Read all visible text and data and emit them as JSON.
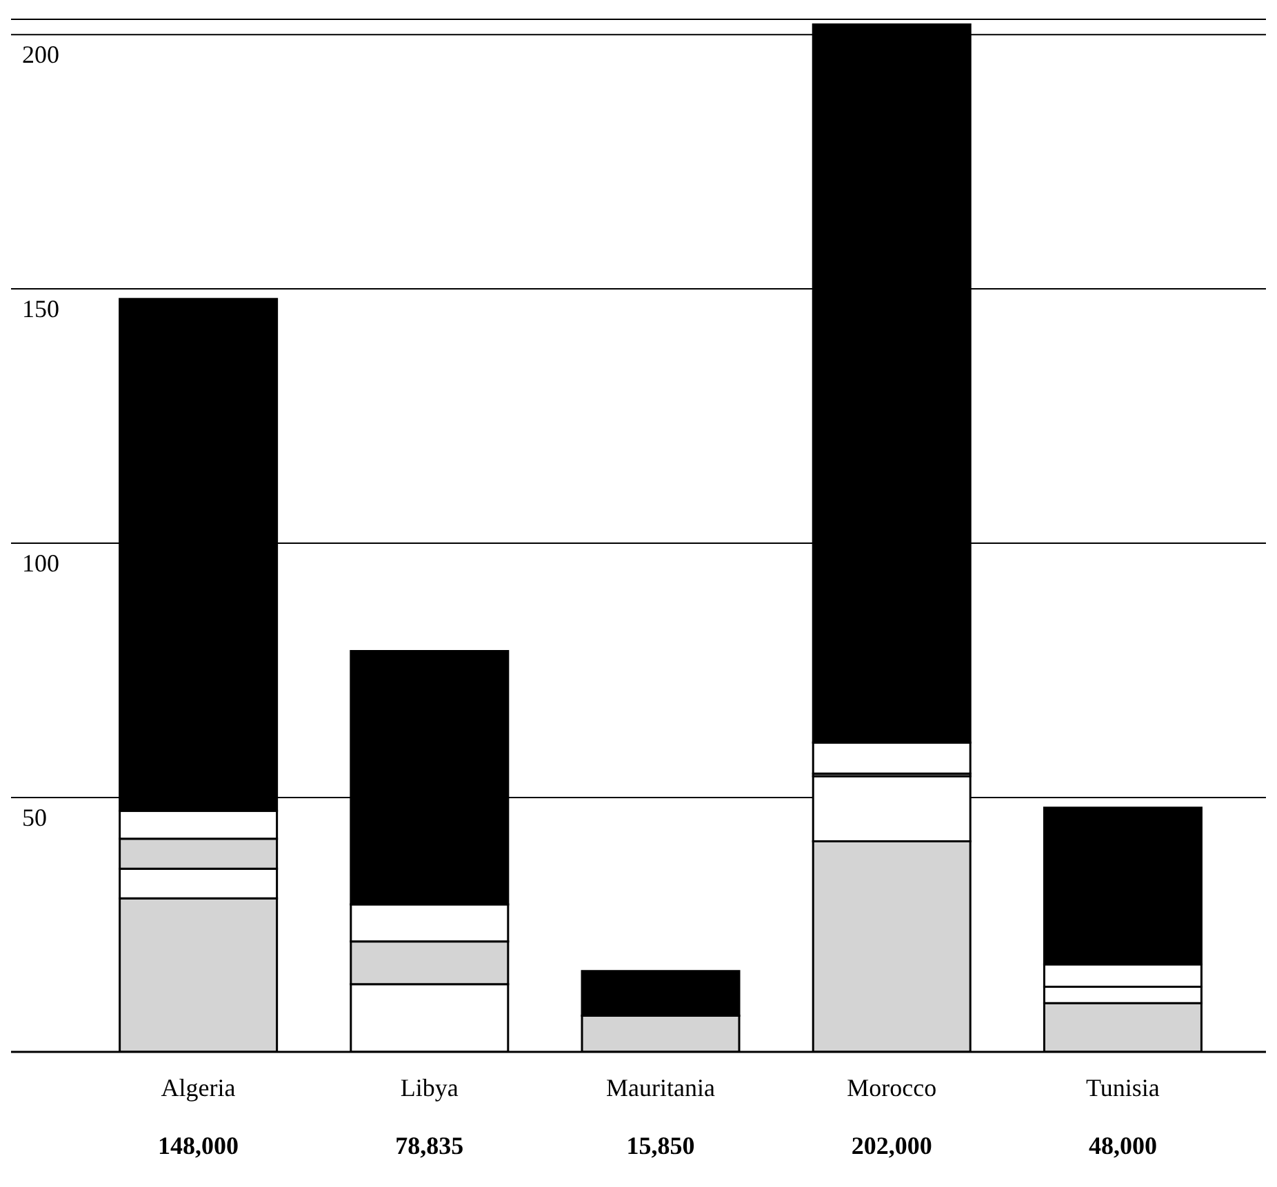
{
  "chart_data": {
    "type": "bar",
    "stacked": true,
    "categories": [
      "Algeria",
      "Libya",
      "Mauritania",
      "Morocco",
      "Tunisia"
    ],
    "series": [
      {
        "color": "#d4d4d4",
        "values": [
          30.2,
          0,
          7.1,
          41.4,
          9.6
        ]
      },
      {
        "color": "#ffffff",
        "values": [
          5.8,
          13.3,
          0,
          12.8,
          3.2
        ]
      },
      {
        "color": "#d4d4d4",
        "values": [
          5.9,
          8.4,
          0,
          0.5,
          0
        ]
      },
      {
        "color": "#ffffff",
        "values": [
          5.5,
          7.3,
          0,
          6.1,
          4.4
        ]
      },
      {
        "color": "#000000",
        "values": [
          100.6,
          49.8,
          8.8,
          141.2,
          30.8
        ]
      }
    ],
    "annotations": [
      "148,000",
      "78,835",
      "15,850",
      "202,000",
      "48,000"
    ],
    "ylim": [
      0,
      203
    ],
    "yticks": [
      {
        "value": 0,
        "label": null
      },
      50,
      100,
      150,
      200
    ],
    "grid": "y"
  }
}
